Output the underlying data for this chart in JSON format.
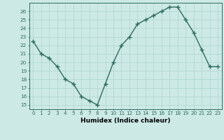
{
  "x": [
    0,
    1,
    2,
    3,
    4,
    5,
    6,
    7,
    8,
    9,
    10,
    11,
    12,
    13,
    14,
    15,
    16,
    17,
    18,
    19,
    20,
    21,
    22,
    23
  ],
  "y": [
    22.5,
    21.0,
    20.5,
    19.5,
    18.0,
    17.5,
    16.0,
    15.5,
    15.0,
    17.5,
    20.0,
    22.0,
    23.0,
    24.5,
    25.0,
    25.5,
    26.0,
    26.5,
    26.5,
    25.0,
    23.5,
    21.5,
    19.5,
    19.5
  ],
  "xlabel": "Humidex (Indice chaleur)",
  "ylim": [
    14.5,
    27
  ],
  "xlim": [
    -0.5,
    23.5
  ],
  "yticks": [
    15,
    16,
    17,
    18,
    19,
    20,
    21,
    22,
    23,
    24,
    25,
    26
  ],
  "xticks": [
    0,
    1,
    2,
    3,
    4,
    5,
    6,
    7,
    8,
    9,
    10,
    11,
    12,
    13,
    14,
    15,
    16,
    17,
    18,
    19,
    20,
    21,
    22,
    23
  ],
  "line_color": "#2d6b5e",
  "bg_color": "#cce9e5",
  "grid_color": "#afd4cf",
  "marker": "+",
  "markersize": 4,
  "linewidth": 1.0,
  "tick_fontsize": 5.2,
  "xlabel_fontsize": 6.5
}
